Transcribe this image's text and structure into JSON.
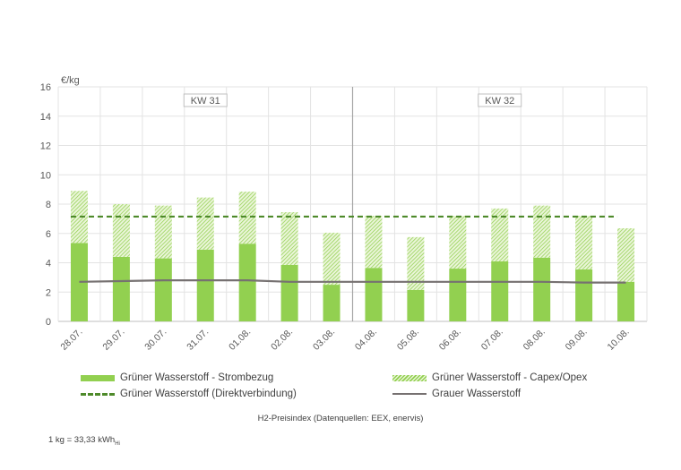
{
  "chart_data": {
    "type": "bar",
    "title": "H2-Preisindex (Datenquellen: EEX, enervis)",
    "ylabel": "€/kg",
    "ylim": [
      0,
      16
    ],
    "yticks": [
      0,
      2,
      4,
      6,
      8,
      10,
      12,
      14,
      16
    ],
    "grid": true,
    "legend_placement": "bottom",
    "categories": [
      "28.07.",
      "29.07.",
      "30.07.",
      "31.07.",
      "01.08.",
      "02.08.",
      "03.08.",
      "04.08.",
      "05.08.",
      "06.08.",
      "07.08.",
      "08.08.",
      "09.08.",
      "10.08."
    ],
    "week_labels": [
      {
        "label": "KW 31",
        "from": 0,
        "to": 6
      },
      {
        "label": "KW 32",
        "from": 7,
        "to": 13
      }
    ],
    "series": [
      {
        "name": "Grüner Wasserstoff - Strombezug",
        "type": "stacked-bar",
        "color": "#92d050",
        "values": [
          5.35,
          4.4,
          4.3,
          4.9,
          5.3,
          3.85,
          2.5,
          3.65,
          2.15,
          3.6,
          4.1,
          4.35,
          3.55,
          2.7
        ]
      },
      {
        "name": "Grüner Wasserstoff - Capex/Opex",
        "type": "stacked-bar-hatched",
        "color": "#92d050",
        "values": [
          3.55,
          3.6,
          3.6,
          3.55,
          3.55,
          3.6,
          3.55,
          3.55,
          3.6,
          3.6,
          3.6,
          3.55,
          3.65,
          3.65
        ]
      },
      {
        "name": "Grüner Wasserstoff (Direktverbindung)",
        "type": "dashed-line",
        "color": "#4e8a2a",
        "values": [
          7.15,
          7.15,
          7.15,
          7.15,
          7.15,
          7.15,
          7.15,
          7.15,
          7.15,
          7.15,
          7.15,
          7.15,
          7.15,
          7.15
        ]
      },
      {
        "name": "Grauer Wasserstoff",
        "type": "line",
        "color": "#767171",
        "values": [
          2.7,
          2.75,
          2.8,
          2.8,
          2.8,
          2.7,
          2.7,
          2.7,
          2.7,
          2.7,
          2.7,
          2.7,
          2.65,
          2.65
        ]
      }
    ],
    "footnote_main": "1 kg = 33,33 kWh",
    "footnote_sub": "Hi"
  }
}
